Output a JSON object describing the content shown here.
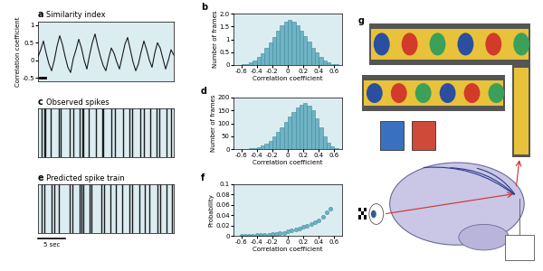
{
  "chart_data": [
    {
      "type": "line",
      "panel": "a",
      "title": "Similarity index",
      "y_label": "Correlation coefficient",
      "x": [
        0,
        0.5,
        1,
        1.5,
        2,
        2.5,
        3,
        3.5,
        4,
        4.5,
        5,
        5.5,
        6,
        6.5,
        7,
        7.5,
        8,
        8.5,
        9,
        9.5,
        10,
        10.5,
        11,
        11.5,
        12,
        12.5,
        13,
        13.5,
        14,
        14.5,
        15,
        15.5,
        16,
        16.5,
        17,
        17.5,
        18,
        18.5,
        19,
        19.5,
        20,
        20.5,
        21,
        21.5,
        22,
        22.5,
        23,
        23.5,
        24,
        24.5,
        25
      ],
      "values": [
        0.1,
        0.3,
        0.55,
        0.2,
        -0.1,
        -0.3,
        0.0,
        0.4,
        0.7,
        0.45,
        0.1,
        -0.2,
        -0.35,
        0.05,
        0.3,
        0.6,
        0.35,
        0.0,
        -0.25,
        0.15,
        0.5,
        0.75,
        0.4,
        0.1,
        -0.15,
        -0.3,
        0.05,
        0.35,
        0.2,
        -0.05,
        -0.25,
        0.1,
        0.45,
        0.65,
        0.3,
        -0.05,
        -0.3,
        -0.1,
        0.25,
        0.55,
        0.3,
        0.0,
        -0.2,
        0.2,
        0.5,
        0.35,
        0.05,
        -0.25,
        0.0,
        0.3,
        0.15
      ],
      "color": "#1a1a1a",
      "xlim": [
        0,
        25
      ],
      "ylim": [
        -0.6,
        1.1
      ],
      "yticks": [
        -0.5,
        0,
        0.5,
        1
      ],
      "tick_labels": "y",
      "scale_bar": {
        "length": 1
      }
    },
    {
      "type": "histogram",
      "panel": "b",
      "x_label": "Correlation coefficient",
      "y_label": "Number of frames",
      "bins": [
        -0.65,
        -0.6,
        -0.55,
        -0.5,
        -0.45,
        -0.4,
        -0.35,
        -0.3,
        -0.25,
        -0.2,
        -0.15,
        -0.1,
        -0.05,
        0,
        0.05,
        0.1,
        0.15,
        0.2,
        0.25,
        0.3,
        0.35,
        0.4,
        0.45,
        0.5,
        0.55,
        0.6,
        0.65
      ],
      "values": [
        0.01,
        0.03,
        0.05,
        0.1,
        0.18,
        0.3,
        0.45,
        0.65,
        0.88,
        1.1,
        1.35,
        1.55,
        1.7,
        1.75,
        1.68,
        1.55,
        1.35,
        1.12,
        0.9,
        0.68,
        0.48,
        0.3,
        0.18,
        0.1,
        0.05,
        0.02
      ],
      "color": "#6fb3c4",
      "xlim": [
        -0.7,
        0.7
      ],
      "xticks": [
        -0.6,
        -0.4,
        -0.2,
        0,
        0.2,
        0.4,
        0.6
      ],
      "ylim": [
        0,
        2
      ],
      "yticks": [
        0,
        0.5,
        1,
        1.5,
        {
          "value": 2,
          "label": "2.0"
        }
      ]
    },
    {
      "type": "raster",
      "panel": "c",
      "title": "Observed spikes",
      "x": [
        0.6,
        1.1,
        1.3,
        2.4,
        3.9,
        4.2,
        5.8,
        6.5,
        7.7,
        8.1,
        8.3,
        9.4,
        10.6,
        11.8,
        12.0,
        13.5,
        14.2,
        15.6,
        16.9,
        17.3,
        18.8,
        19.5,
        20.6,
        21.9,
        22.4,
        23.7,
        24.5
      ],
      "color": "#1a1a1a",
      "xlim": [
        0,
        25
      ],
      "tick_labels": false
    },
    {
      "type": "histogram",
      "panel": "d",
      "x_label": "Correlation coefficient",
      "y_label": "Number of frames",
      "bins": [
        -0.65,
        -0.6,
        -0.55,
        -0.5,
        -0.45,
        -0.4,
        -0.35,
        -0.3,
        -0.25,
        -0.2,
        -0.15,
        -0.1,
        -0.05,
        0,
        0.05,
        0.1,
        0.15,
        0.2,
        0.25,
        0.3,
        0.35,
        0.4,
        0.45,
        0.5,
        0.55,
        0.6,
        0.65
      ],
      "values": [
        0,
        0,
        1,
        2,
        4,
        8,
        14,
        22,
        33,
        48,
        65,
        85,
        105,
        125,
        145,
        160,
        172,
        178,
        170,
        150,
        120,
        85,
        50,
        25,
        10,
        3
      ],
      "color": "#6fb3c4",
      "xlim": [
        -0.7,
        0.7
      ],
      "xticks": [
        -0.6,
        -0.4,
        -0.2,
        0,
        0.2,
        0.4,
        0.6
      ],
      "ylim": [
        0,
        200
      ],
      "yticks": [
        0,
        50,
        100,
        150,
        200
      ]
    },
    {
      "type": "raster",
      "panel": "e",
      "title": "Predicted spike train",
      "x": [
        0.7,
        1.2,
        2.5,
        3.0,
        3.8,
        5.9,
        6.4,
        7.6,
        8.0,
        8.4,
        9.5,
        9.8,
        11.7,
        12.1,
        13.4,
        14.3,
        15.5,
        16.8,
        17.4,
        18.7,
        19.6,
        20.5,
        22.0,
        22.5,
        23.6,
        24.6
      ],
      "color": "#1a1a1a",
      "xlim": [
        0,
        25
      ],
      "tick_labels": false,
      "scale_bar": {
        "length": 5,
        "label": "5 sec"
      }
    },
    {
      "type": "scatter",
      "panel": "f",
      "x_label": "Correlation coefficient",
      "y_label": "Probability",
      "x": [
        -0.6,
        -0.55,
        -0.5,
        -0.45,
        -0.4,
        -0.35,
        -0.3,
        -0.25,
        -0.2,
        -0.15,
        -0.1,
        -0.05,
        0,
        0.05,
        0.1,
        0.15,
        0.2,
        0.25,
        0.3,
        0.35,
        0.4,
        0.45,
        0.5,
        0.55
      ],
      "values": [
        0,
        0,
        0,
        0,
        0.001,
        0.001,
        0.002,
        0.002,
        0.003,
        0.004,
        0.005,
        0.006,
        0.008,
        0.01,
        0.012,
        0.014,
        0.017,
        0.02,
        0.023,
        0.027,
        0.03,
        0.036,
        0.045,
        0.052
      ],
      "color": "#6fb3c4",
      "marker": "o",
      "xlim": [
        -0.7,
        0.7
      ],
      "xticks": [
        -0.6,
        -0.4,
        -0.2,
        0,
        0.2,
        0.4,
        0.6
      ],
      "ylim": [
        0,
        0.1
      ],
      "yticks": [
        0,
        0.02,
        0.04,
        0.06,
        0.08,
        0.1
      ]
    }
  ],
  "illustration": {
    "panel": "g"
  }
}
